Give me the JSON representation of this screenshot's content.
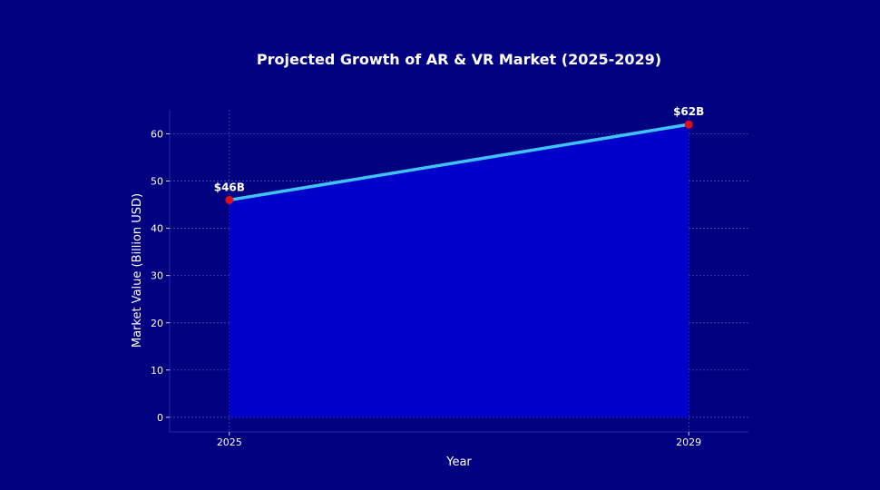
{
  "chart_data": {
    "type": "area",
    "title": "Projected Growth of AR & VR Market (2025-2029)",
    "xlabel": "Year",
    "ylabel": "Market Value (Billion USD)",
    "x": [
      2025,
      2029
    ],
    "x_tick_labels": [
      "2025",
      "2029"
    ],
    "series": [
      {
        "values": [
          46,
          62
        ],
        "data_labels": [
          "$46B",
          "$62B"
        ]
      }
    ],
    "xlim": [
      2024.48,
      2029.52
    ],
    "ylim": [
      -3.1,
      65.1
    ],
    "y_ticks": [
      0,
      10,
      20,
      30,
      40,
      50,
      60
    ],
    "y_tick_labels": [
      "0",
      "10",
      "20",
      "30",
      "40",
      "50",
      "60"
    ],
    "grid": true,
    "colors": {
      "background": "#000080",
      "fill": "#0000cd",
      "line": "#3fc3f7",
      "marker": "#e0101a",
      "grid": "#6a6ad0",
      "text": "#ffffff"
    }
  }
}
